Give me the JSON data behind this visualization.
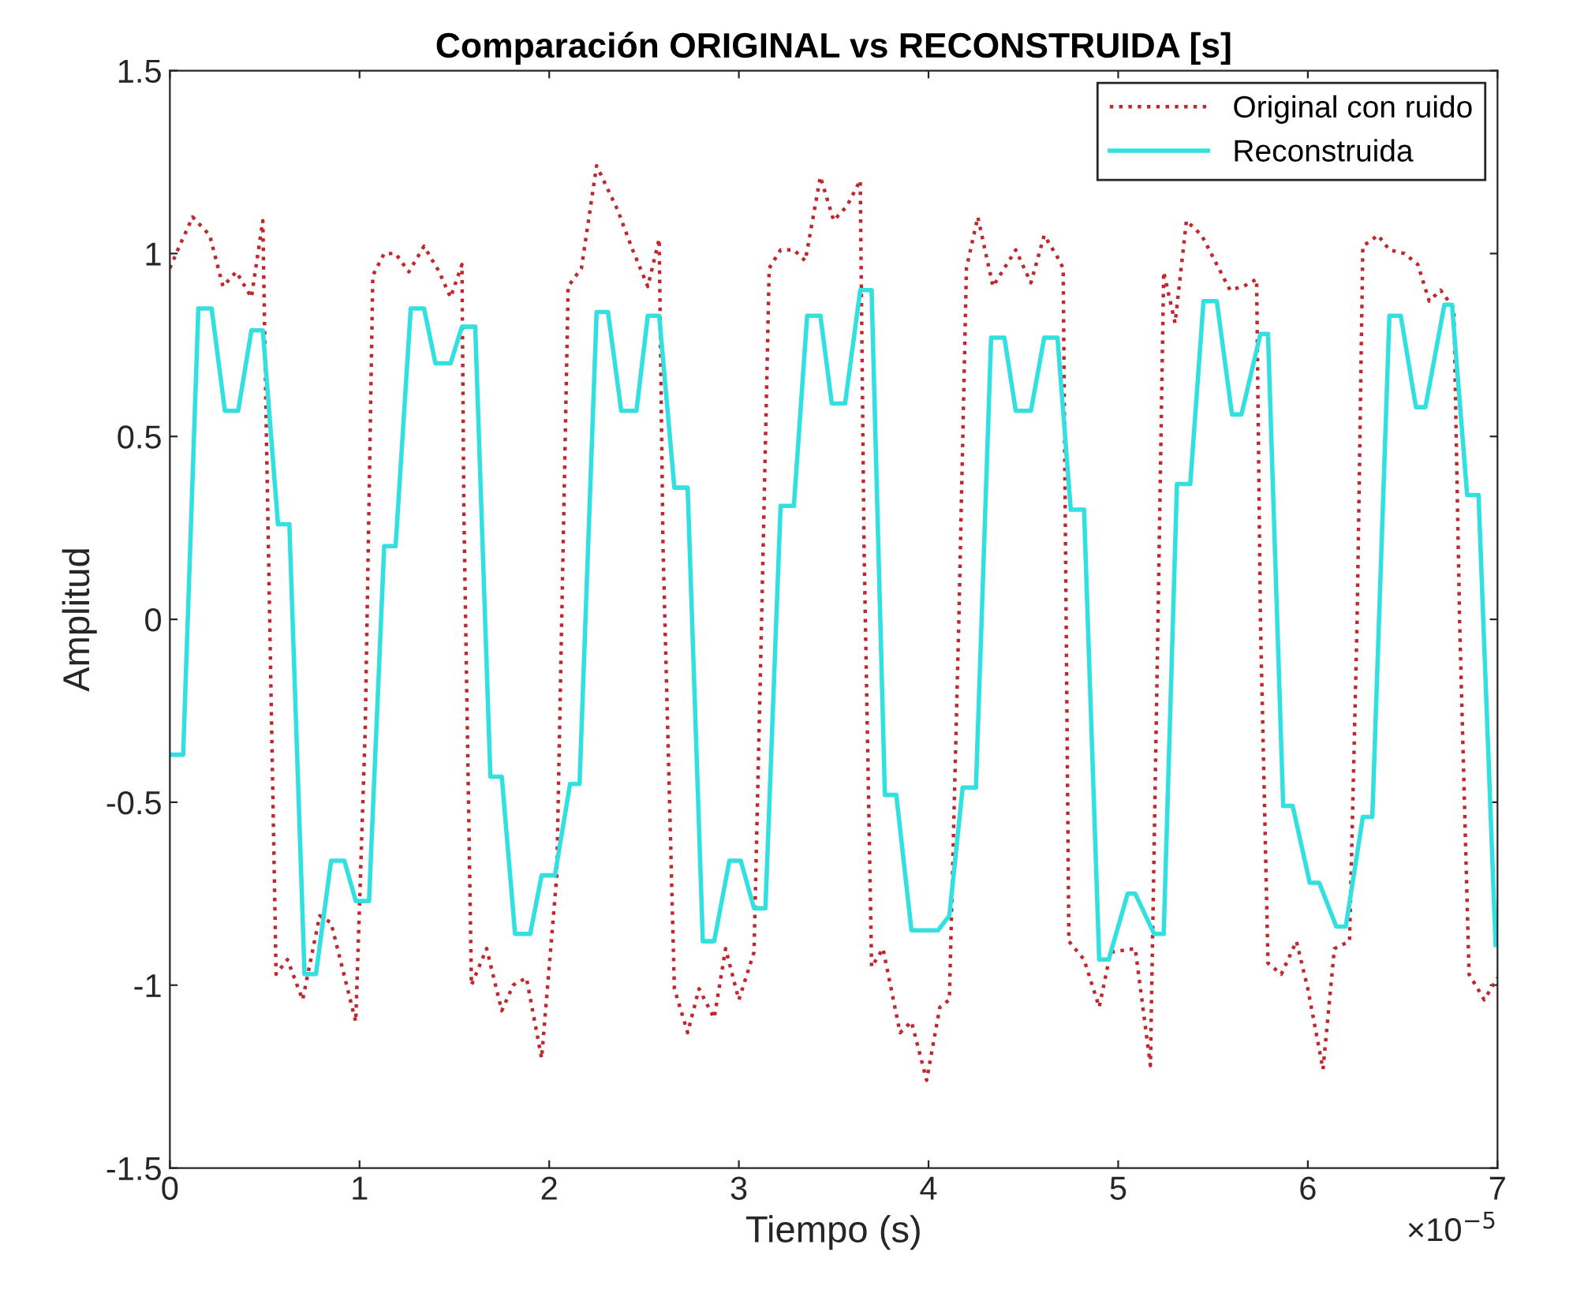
{
  "chart_data": {
    "type": "line",
    "title": "Comparación ORIGINAL vs RECONSTRUIDA [s]",
    "xlabel": "Tiempo (s)",
    "ylabel": "Amplitud",
    "annotations": [
      "×10$^{−5}$"
    ],
    "xlim": [
      0,
      7
    ],
    "xticks": [
      0,
      1,
      2,
      3,
      4,
      5,
      6,
      7
    ],
    "ylim": [
      -1.5,
      1.5
    ],
    "yticks": [
      -1.5,
      -1,
      -0.5,
      0,
      0.5,
      1,
      1.5
    ],
    "grid": false,
    "legend": "top right",
    "series": [
      {
        "name": "Original con ruido",
        "color": "#c0282d",
        "line_style": "dotted",
        "x": [
          0.0,
          0.05,
          0.12,
          0.21,
          0.28,
          0.35,
          0.43,
          0.49,
          0.51,
          0.56,
          0.62,
          0.7,
          0.79,
          0.85,
          0.98,
          1.03,
          1.07,
          1.13,
          1.19,
          1.26,
          1.34,
          1.42,
          1.48,
          1.54,
          1.55,
          1.59,
          1.67,
          1.75,
          1.81,
          1.88,
          1.96,
          2.04,
          2.1,
          2.17,
          2.25,
          2.36,
          2.44,
          2.52,
          2.58,
          2.6,
          2.66,
          2.73,
          2.79,
          2.87,
          2.93,
          3.0,
          3.08,
          3.12,
          3.16,
          3.22,
          3.29,
          3.35,
          3.43,
          3.5,
          3.57,
          3.64,
          3.66,
          3.7,
          3.76,
          3.85,
          3.91,
          3.99,
          4.06,
          4.11,
          4.16,
          4.2,
          4.26,
          4.34,
          4.46,
          4.54,
          4.61,
          4.68,
          4.71,
          4.74,
          4.82,
          4.9,
          4.96,
          5.09,
          5.17,
          5.21,
          5.24,
          5.3,
          5.36,
          5.44,
          5.52,
          5.59,
          5.66,
          5.73,
          5.75,
          5.79,
          5.86,
          5.94,
          6.0,
          6.08,
          6.14,
          6.22,
          6.26,
          6.29,
          6.37,
          6.43,
          6.51,
          6.58,
          6.64,
          6.7,
          6.77,
          6.8,
          6.85,
          6.93,
          7.0
        ],
        "values": [
          0.96,
          1.02,
          1.1,
          1.05,
          0.91,
          0.95,
          0.88,
          1.09,
          0.47,
          -0.97,
          -0.93,
          -1.04,
          -0.81,
          -0.83,
          -1.1,
          -0.3,
          0.94,
          1.0,
          1.0,
          0.95,
          1.02,
          0.95,
          0.88,
          0.97,
          0.3,
          -1.0,
          -0.9,
          -1.07,
          -1.0,
          -0.98,
          -1.2,
          -0.7,
          0.91,
          0.96,
          1.24,
          1.12,
          1.01,
          0.91,
          1.04,
          0.2,
          -1.01,
          -1.13,
          -1.01,
          -1.09,
          -0.9,
          -1.04,
          -0.91,
          0.0,
          0.96,
          1.01,
          1.01,
          0.98,
          1.21,
          1.09,
          1.13,
          1.2,
          0.2,
          -0.95,
          -0.9,
          -1.13,
          -1.1,
          -1.26,
          -1.06,
          -1.04,
          0.0,
          0.96,
          1.1,
          0.91,
          1.01,
          0.92,
          1.05,
          0.99,
          0.96,
          -0.88,
          -0.93,
          -1.06,
          -0.91,
          -0.9,
          -1.22,
          0.0,
          0.95,
          0.81,
          1.09,
          1.05,
          0.97,
          0.9,
          0.91,
          0.93,
          0.0,
          -0.94,
          -0.97,
          -0.88,
          -1.01,
          -1.23,
          -0.9,
          -0.88,
          0.0,
          1.02,
          1.05,
          1.01,
          1.0,
          0.97,
          0.87,
          0.9,
          0.85,
          0.0,
          -0.97,
          -1.04,
          -0.98
        ]
      },
      {
        "name": "Reconstruida",
        "color": "#33e0e0",
        "line_style": "solid",
        "x": [
          0.0,
          0.07,
          0.15,
          0.22,
          0.29,
          0.36,
          0.43,
          0.49,
          0.57,
          0.63,
          0.71,
          0.77,
          0.85,
          0.92,
          0.98,
          1.05,
          1.13,
          1.19,
          1.27,
          1.34,
          1.4,
          1.48,
          1.54,
          1.61,
          1.69,
          1.75,
          1.82,
          1.9,
          1.96,
          2.03,
          2.11,
          2.16,
          2.25,
          2.31,
          2.38,
          2.46,
          2.52,
          2.58,
          2.66,
          2.73,
          2.81,
          2.87,
          2.95,
          3.01,
          3.08,
          3.14,
          3.22,
          3.29,
          3.36,
          3.43,
          3.49,
          3.56,
          3.64,
          3.7,
          3.77,
          3.83,
          3.91,
          4.05,
          4.11,
          4.18,
          4.25,
          4.33,
          4.4,
          4.46,
          4.54,
          4.61,
          4.68,
          4.75,
          4.82,
          4.9,
          4.95,
          5.05,
          5.09,
          5.19,
          5.24,
          5.31,
          5.38,
          5.45,
          5.52,
          5.6,
          5.65,
          5.75,
          5.79,
          5.87,
          5.92,
          6.01,
          6.06,
          6.15,
          6.2,
          6.29,
          6.34,
          6.43,
          6.49,
          6.57,
          6.62,
          6.72,
          6.76,
          6.84,
          6.9,
          6.99
        ],
        "values": [
          -0.37,
          -0.37,
          0.85,
          0.85,
          0.57,
          0.57,
          0.79,
          0.79,
          0.26,
          0.26,
          -0.97,
          -0.97,
          -0.66,
          -0.66,
          -0.77,
          -0.77,
          0.2,
          0.2,
          0.85,
          0.85,
          0.7,
          0.7,
          0.8,
          0.8,
          -0.43,
          -0.43,
          -0.86,
          -0.86,
          -0.7,
          -0.7,
          -0.45,
          -0.45,
          0.84,
          0.84,
          0.57,
          0.57,
          0.83,
          0.83,
          0.36,
          0.36,
          -0.88,
          -0.88,
          -0.66,
          -0.66,
          -0.79,
          -0.79,
          0.31,
          0.31,
          0.83,
          0.83,
          0.59,
          0.59,
          0.9,
          0.9,
          -0.48,
          -0.48,
          -0.85,
          -0.85,
          -0.81,
          -0.46,
          -0.46,
          0.77,
          0.77,
          0.57,
          0.57,
          0.77,
          0.77,
          0.3,
          0.3,
          -0.93,
          -0.93,
          -0.75,
          -0.75,
          -0.86,
          -0.86,
          0.37,
          0.37,
          0.87,
          0.87,
          0.56,
          0.56,
          0.78,
          0.78,
          -0.51,
          -0.51,
          -0.72,
          -0.72,
          -0.84,
          -0.84,
          -0.54,
          -0.54,
          0.83,
          0.83,
          0.58,
          0.58,
          0.86,
          0.86,
          0.34,
          0.34,
          -0.89
        ]
      }
    ]
  }
}
